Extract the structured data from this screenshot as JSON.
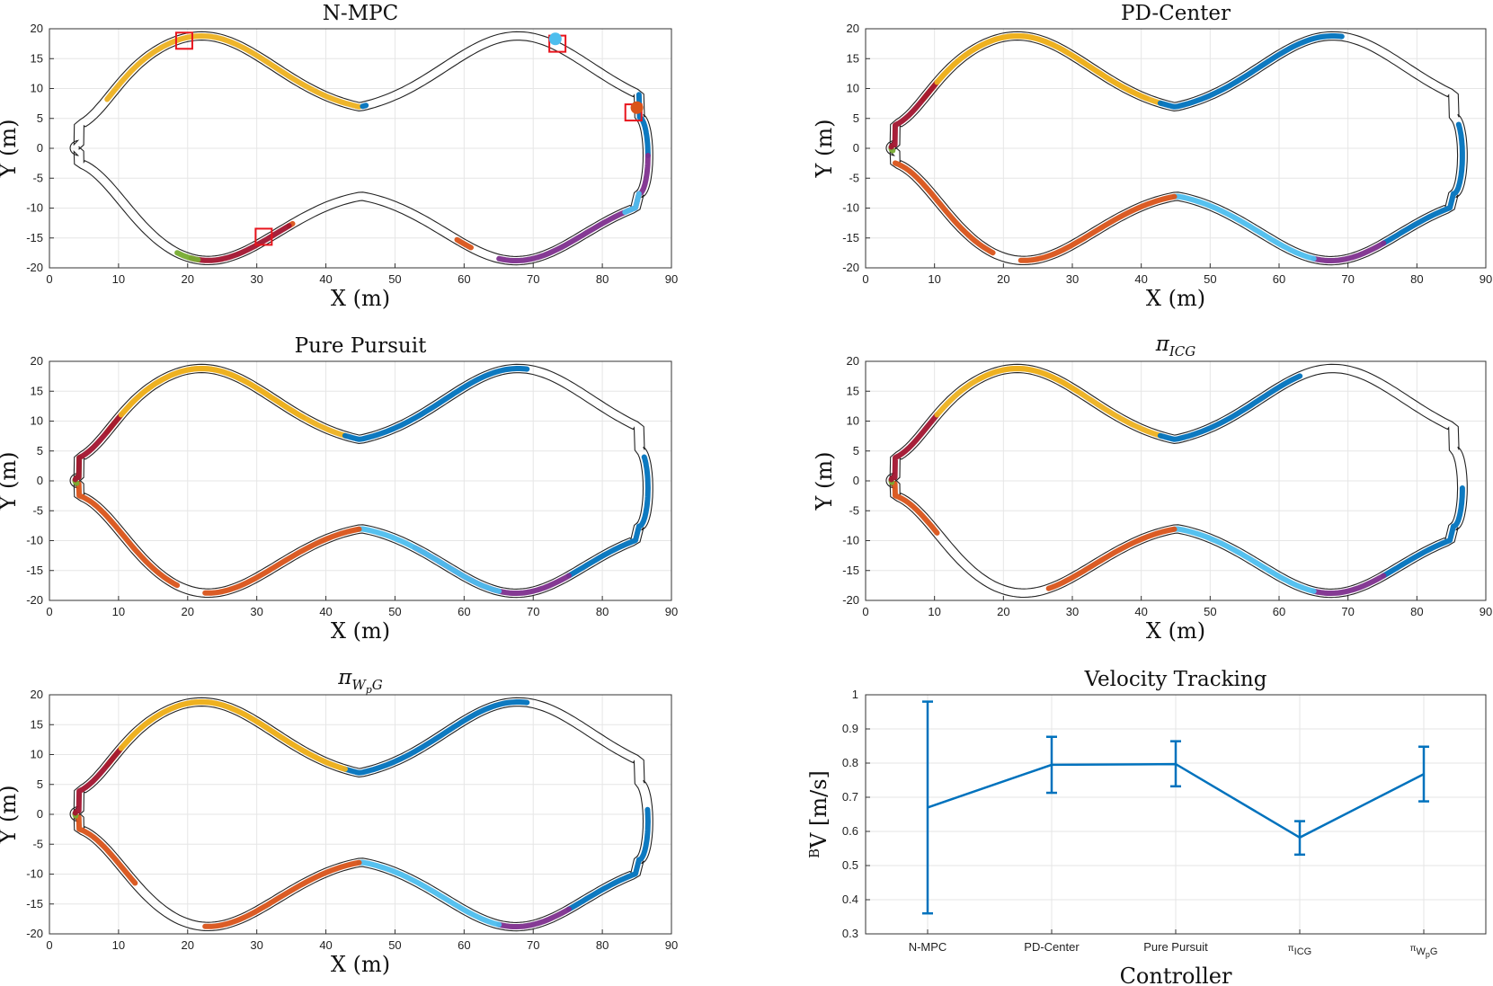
{
  "chart_data": [
    {
      "type": "line",
      "title": "N-MPC",
      "title_parts": [],
      "xlabel": "X (m)",
      "ylabel": "Y (m)",
      "xlim": [
        0,
        90
      ],
      "ylim": [
        -20,
        20
      ],
      "xticks": [
        "0",
        "10",
        "20",
        "30",
        "40",
        "50",
        "60",
        "70",
        "80",
        "90"
      ],
      "yticks": [
        "-20",
        "-15",
        "-10",
        "-5",
        "0",
        "5",
        "10",
        "15",
        "20"
      ],
      "grid": true,
      "segments": [
        {
          "color": "#EDB120",
          "t": [
            0.02,
            0.2
          ]
        },
        {
          "color": "#0072BD",
          "t": [
            0.202,
            0.206
          ]
        },
        {
          "color": "#0072BD",
          "t": [
            0.4,
            0.45
          ]
        },
        {
          "color": "#7E2F8E",
          "t": [
            0.45,
            0.6
          ]
        },
        {
          "color": "#4DBEEE",
          "t": [
            0.5,
            0.51
          ]
        },
        {
          "color": "#D95319",
          "t": [
            0.62,
            0.63
          ]
        },
        {
          "color": "#D95319",
          "t": [
            0.747,
            0.75
          ]
        },
        {
          "color": "#A2142F",
          "t": [
            0.75,
            0.82
          ]
        },
        {
          "color": "#77AC30",
          "t": [
            0.815,
            0.83
          ]
        }
      ],
      "markers": [
        {
          "type": "square",
          "x": 19.5,
          "y": 18.0
        },
        {
          "type": "square",
          "x": 73.5,
          "y": 17.5
        },
        {
          "type": "square",
          "x": 84.5,
          "y": 6.0
        },
        {
          "type": "square",
          "x": 31.0,
          "y": -14.8
        },
        {
          "type": "dot",
          "x": 73.2,
          "y": 18.3,
          "color": "#4DBEEE"
        },
        {
          "type": "dot",
          "x": 85.0,
          "y": 6.8,
          "color": "#D95319"
        }
      ]
    },
    {
      "type": "line",
      "title": "PD-Center",
      "title_parts": [],
      "xlabel": "X (m)",
      "ylabel": "Y (m)",
      "xlim": [
        0,
        90
      ],
      "ylim": [
        -20,
        20
      ],
      "xticks": [
        "0",
        "10",
        "20",
        "30",
        "40",
        "50",
        "60",
        "70",
        "80",
        "90"
      ],
      "yticks": [
        "-20",
        "-15",
        "-10",
        "-5",
        "0",
        "5",
        "10",
        "15",
        "20"
      ],
      "grid": true,
      "segments": [
        {
          "color": "#EDB120",
          "t": [
            0.02,
            0.19
          ]
        },
        {
          "color": "#0072BD",
          "t": [
            0.19,
            0.32
          ]
        },
        {
          "color": "#0072BD",
          "t": [
            0.42,
            0.55
          ]
        },
        {
          "color": "#7E2F8E",
          "t": [
            0.55,
            0.6
          ]
        },
        {
          "color": "#4DBEEE",
          "t": [
            0.6,
            0.7
          ]
        },
        {
          "color": "#D95319",
          "t": [
            0.7,
            0.81
          ]
        },
        {
          "color": "#D95319",
          "t": [
            0.83,
            0.9
          ]
        },
        {
          "color": "#77AC30",
          "t": [
            0.92,
            0.96
          ]
        },
        {
          "color": "#A2142F",
          "t": [
            0.96,
            1.03
          ]
        },
        {
          "color": "#EDB120",
          "t": [
            1.03,
            1.18
          ]
        }
      ],
      "markers": []
    },
    {
      "type": "line",
      "title": "Pure Pursuit",
      "title_parts": [],
      "xlabel": "X (m)",
      "ylabel": "Y (m)",
      "xlim": [
        0,
        90
      ],
      "ylim": [
        -20,
        20
      ],
      "xticks": [
        "0",
        "10",
        "20",
        "30",
        "40",
        "50",
        "60",
        "70",
        "80",
        "90"
      ],
      "yticks": [
        "-20",
        "-15",
        "-10",
        "-5",
        "0",
        "5",
        "10",
        "15",
        "20"
      ],
      "grid": true,
      "segments": [
        {
          "color": "#EDB120",
          "t": [
            0.02,
            0.19
          ]
        },
        {
          "color": "#0072BD",
          "t": [
            0.19,
            0.32
          ]
        },
        {
          "color": "#0072BD",
          "t": [
            0.42,
            0.55
          ]
        },
        {
          "color": "#7E2F8E",
          "t": [
            0.55,
            0.66
          ]
        },
        {
          "color": "#4DBEEE",
          "t": [
            0.6,
            0.7
          ]
        },
        {
          "color": "#D95319",
          "t": [
            0.7,
            0.81
          ]
        },
        {
          "color": "#D95319",
          "t": [
            0.83,
            0.92
          ]
        },
        {
          "color": "#77AC30",
          "t": [
            0.92,
            1.0
          ]
        },
        {
          "color": "#A2142F",
          "t": [
            0.96,
            1.03
          ]
        },
        {
          "color": "#EDB120",
          "t": [
            1.03,
            1.16
          ]
        }
      ],
      "markers": []
    },
    {
      "type": "line",
      "title": "",
      "title_parts": [
        "π",
        "ICG",
        ""
      ],
      "xlabel": "X (m)",
      "ylabel": "Y (m)",
      "xlim": [
        0,
        90
      ],
      "ylim": [
        -20,
        20
      ],
      "xticks": [
        "0",
        "10",
        "20",
        "30",
        "40",
        "50",
        "60",
        "70",
        "80",
        "90"
      ],
      "yticks": [
        "-20",
        "-15",
        "-10",
        "-5",
        "0",
        "5",
        "10",
        "15",
        "20"
      ],
      "grid": true,
      "segments": [
        {
          "color": "#EDB120",
          "t": [
            0.06,
            0.19
          ]
        },
        {
          "color": "#0072BD",
          "t": [
            0.19,
            0.29
          ]
        },
        {
          "color": "#0072BD",
          "t": [
            0.45,
            0.55
          ]
        },
        {
          "color": "#7E2F8E",
          "t": [
            0.55,
            0.6
          ]
        },
        {
          "color": "#4DBEEE",
          "t": [
            0.6,
            0.7
          ]
        },
        {
          "color": "#D95319",
          "t": [
            0.7,
            0.79
          ]
        },
        {
          "color": "#D95319",
          "t": [
            0.87,
            0.93
          ]
        },
        {
          "color": "#77AC30",
          "t": [
            0.93,
            0.96
          ]
        },
        {
          "color": "#A2142F",
          "t": [
            0.96,
            1.03
          ]
        },
        {
          "color": "#EDB120",
          "t": [
            1.03,
            1.13
          ]
        }
      ],
      "markers": []
    },
    {
      "type": "line",
      "title": "",
      "title_parts": [
        "π",
        "W",
        "p",
        "G"
      ],
      "xlabel": "X (m)",
      "ylabel": "Y (m)",
      "xlim": [
        0,
        90
      ],
      "ylim": [
        -20,
        20
      ],
      "xticks": [
        "0",
        "10",
        "20",
        "30",
        "40",
        "50",
        "60",
        "70",
        "80",
        "90"
      ],
      "yticks": [
        "-20",
        "-15",
        "-10",
        "-5",
        "0",
        "5",
        "10",
        "15",
        "20"
      ],
      "grid": true,
      "segments": [
        {
          "color": "#EDB120",
          "t": [
            0.02,
            0.19
          ]
        },
        {
          "color": "#0072BD",
          "t": [
            0.19,
            0.32
          ]
        },
        {
          "color": "#0072BD",
          "t": [
            0.44,
            0.55
          ]
        },
        {
          "color": "#7E2F8E",
          "t": [
            0.55,
            0.6
          ]
        },
        {
          "color": "#4DBEEE",
          "t": [
            0.6,
            0.7
          ]
        },
        {
          "color": "#D95319",
          "t": [
            0.7,
            0.81
          ]
        },
        {
          "color": "#D95319",
          "t": [
            0.86,
            0.93
          ]
        },
        {
          "color": "#77AC30",
          "t": [
            0.93,
            0.96
          ]
        },
        {
          "color": "#A2142F",
          "t": [
            0.96,
            1.03
          ]
        },
        {
          "color": "#EDB120",
          "t": [
            1.03,
            1.19
          ]
        }
      ],
      "markers": []
    },
    {
      "type": "line",
      "title": "Velocity Tracking",
      "xlabel": "Controller",
      "ylabel_parts": [
        "B",
        "V [m/s]"
      ],
      "ylim": [
        0.3,
        1.0
      ],
      "yticks": [
        "0.3",
        "0.4",
        "0.5",
        "0.6",
        "0.7",
        "0.8",
        "0.9",
        "1"
      ],
      "categories": [
        "N-MPC",
        "PD-Center",
        "Pure Pursuit",
        "π_ICG",
        "π_WpG"
      ],
      "category_parts": [
        [
          "N-MPC"
        ],
        [
          "PD-Center"
        ],
        [
          "Pure Pursuit"
        ],
        [
          "π",
          "ICG"
        ],
        [
          "π",
          "W",
          "p",
          "G"
        ]
      ],
      "series": [
        {
          "values": [
            0.67,
            0.795,
            0.797,
            0.582,
            0.768
          ],
          "err_low": [
            0.36,
            0.713,
            0.732,
            0.532,
            0.688
          ],
          "err_high": [
            0.98,
            0.877,
            0.864,
            0.63,
            0.848
          ],
          "color": "#0072BD"
        }
      ],
      "grid": true
    }
  ]
}
